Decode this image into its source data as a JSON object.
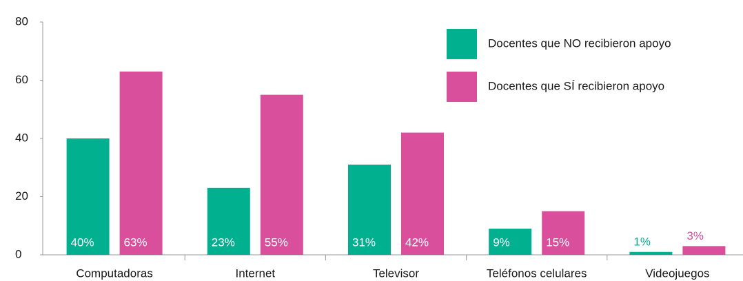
{
  "chart_data": {
    "type": "bar",
    "categories": [
      "Computadoras",
      "Internet",
      "Televisor",
      "Teléfonos celulares",
      "Videojuegos"
    ],
    "series": [
      {
        "name": "Docentes que NO recibieron apoyo",
        "color": "#00b08f",
        "values": [
          40,
          23,
          31,
          9,
          1
        ],
        "value_labels": [
          "40%",
          "23%",
          "31%",
          "9%",
          "1%"
        ]
      },
      {
        "name": "Docentes que SÍ recibieron apoyo",
        "color": "#d94f9b",
        "values": [
          63,
          55,
          42,
          15,
          3
        ],
        "value_labels": [
          "63%",
          "55%",
          "42%",
          "15%",
          "3%"
        ]
      }
    ],
    "ylim": [
      0,
      80
    ],
    "yticks": [
      0,
      20,
      40,
      60,
      80
    ],
    "grid": false,
    "legend": "top-right"
  }
}
